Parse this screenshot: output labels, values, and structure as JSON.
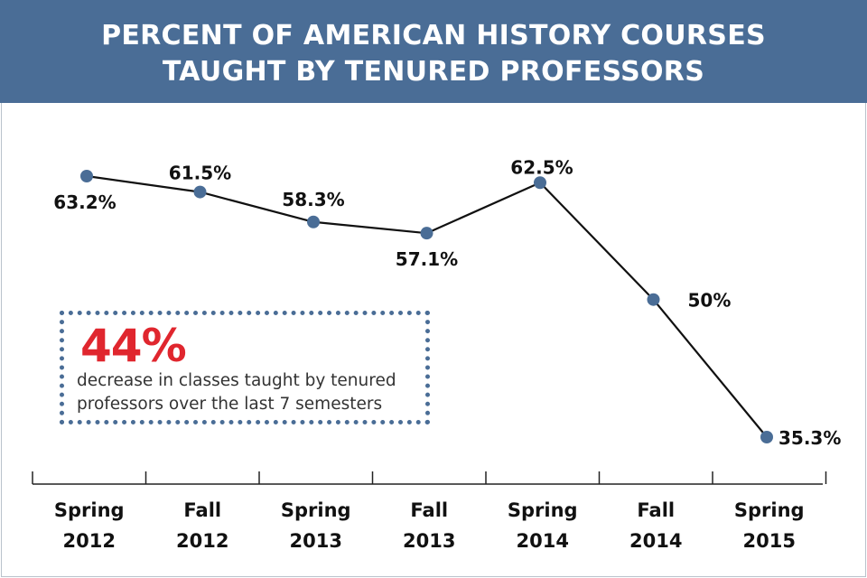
{
  "header": {
    "title_line1": "PERCENT OF AMERICAN HISTORY COURSES",
    "title_line2": "TAUGHT BY TENURED PROFESSORS"
  },
  "callout": {
    "value": "44%",
    "description": "decrease in classes taught by tenured professors over the last 7 semesters"
  },
  "colors": {
    "header_bg": "#4a6d96",
    "marker": "#4a6d96",
    "line": "#111111",
    "callout_value": "#e0262e"
  },
  "chart_data": {
    "type": "line",
    "title": "PERCENT OF AMERICAN HISTORY COURSES TAUGHT BY TENURED PROFESSORS",
    "categories": [
      [
        "Spring",
        "2012"
      ],
      [
        "Fall",
        "2012"
      ],
      [
        "Spring",
        "2013"
      ],
      [
        "Fall",
        "2013"
      ],
      [
        "Spring",
        "2014"
      ],
      [
        "Fall",
        "2014"
      ],
      [
        "Spring",
        "2015"
      ]
    ],
    "series": [
      {
        "values": [
          63.2,
          61.5,
          58.3,
          57.1,
          62.5,
          50,
          35.3
        ]
      }
    ],
    "data_labels": [
      "63.2%",
      "61.5%",
      "58.3%",
      "57.1%",
      "62.5%",
      "50%",
      "35.3%"
    ],
    "xlabel": "",
    "ylabel": "",
    "ylim": [
      35.3,
      63.2
    ],
    "grid": false,
    "legend": "none"
  }
}
